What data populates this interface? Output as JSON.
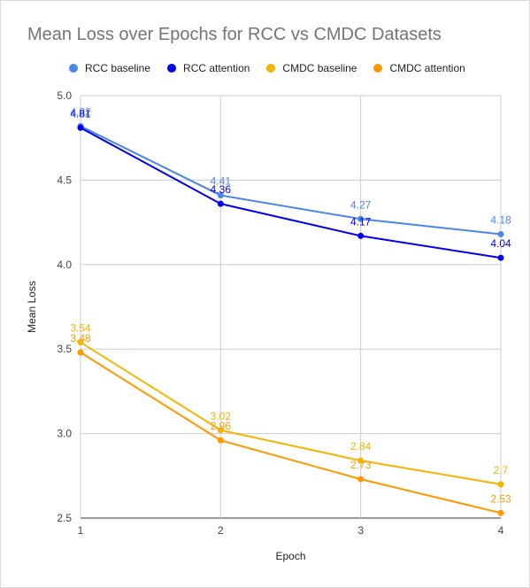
{
  "chart_data": {
    "type": "line",
    "title": "Mean Loss over Epochs for RCC vs CMDC Datasets",
    "xlabel": "Epoch",
    "ylabel": "Mean Loss",
    "x": [
      1,
      2,
      3,
      4
    ],
    "x_tick_labels": [
      "1",
      "2",
      "3",
      "4"
    ],
    "ylim": [
      2.5,
      5.0
    ],
    "y_ticks": [
      2.5,
      3.0,
      3.5,
      4.0,
      4.5,
      5.0
    ],
    "y_tick_labels": [
      "2.5",
      "3.0",
      "3.5",
      "4.0",
      "4.5",
      "5.0"
    ],
    "grid": true,
    "legend_position": "top",
    "series": [
      {
        "name": "RCC baseline",
        "color": "#4a86e8",
        "values": [
          4.82,
          4.41,
          4.27,
          4.18
        ],
        "labels": [
          "4.82",
          "4.41",
          "4.27",
          "4.18"
        ]
      },
      {
        "name": "RCC attention",
        "color": "#0000ee",
        "values": [
          4.81,
          4.36,
          4.17,
          4.04
        ],
        "labels": [
          "4.81",
          "4.36",
          "4.17",
          "4.04"
        ]
      },
      {
        "name": "CMDC baseline",
        "color": "#f4b400",
        "values": [
          3.54,
          3.02,
          2.84,
          2.7
        ],
        "labels": [
          "3.54",
          "3.02",
          "2.84",
          "2.7"
        ]
      },
      {
        "name": "CMDC attention",
        "color": "#ff9900",
        "values": [
          3.48,
          2.96,
          2.73,
          2.53
        ],
        "labels": [
          "3.48",
          "2.96",
          "2.73",
          "2.53"
        ]
      }
    ]
  }
}
